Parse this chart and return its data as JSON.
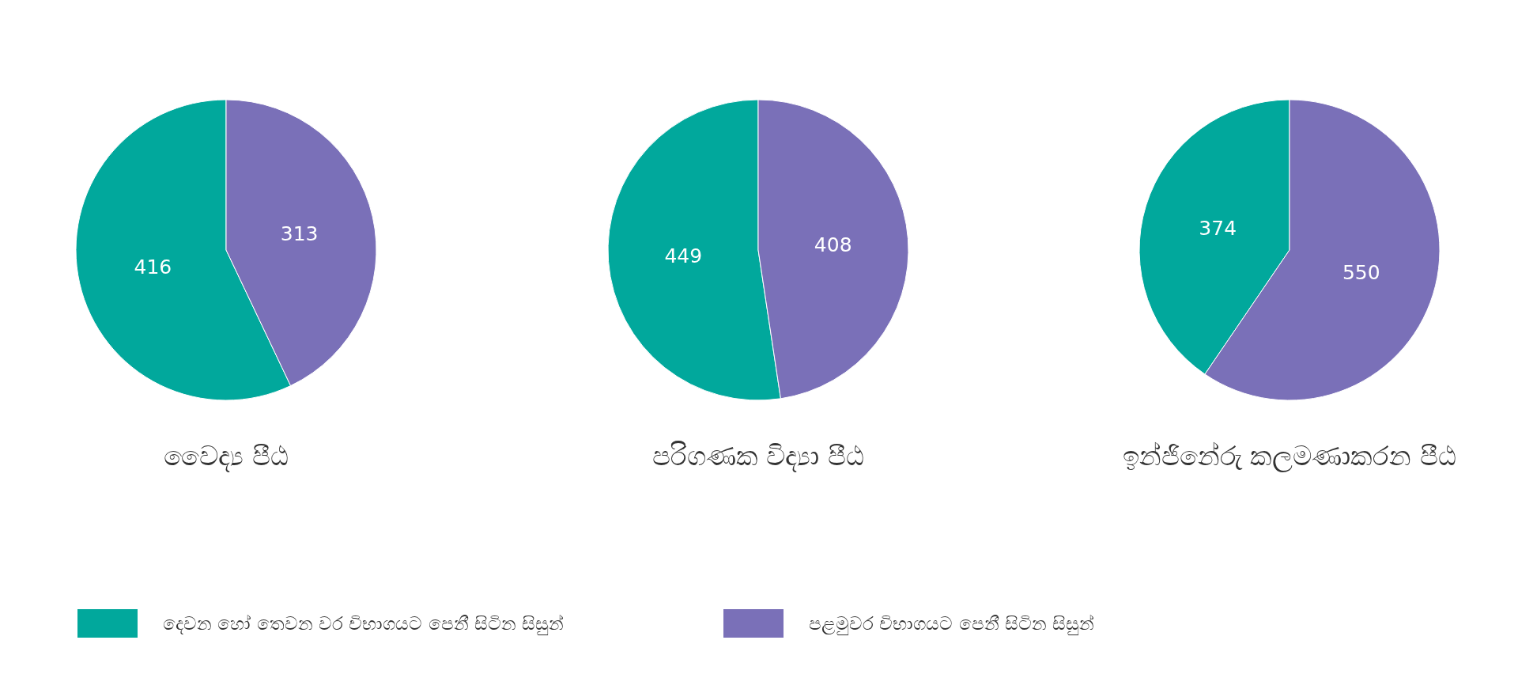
{
  "chart_data": [
    {
      "type": "pie",
      "title": "වෛද්‍ය පීඨ",
      "categories": [
        "දෙවන හෝ තෙවන වර විභාගයට පෙනී සිටින සිසුන්",
        "පළමුවර විභාගයට පෙනී සිටින සිසුන්"
      ],
      "values": [
        416,
        313
      ],
      "colors": [
        "#01a89c",
        "#7a70b8"
      ],
      "data_labels": true,
      "legend": "bottom"
    },
    {
      "type": "pie",
      "title": "පරිගණක විද්‍යා පීඨ",
      "categories": [
        null,
        null
      ],
      "values": [
        449,
        408
      ],
      "colors": [
        "#01a89c",
        "#7a70b8"
      ],
      "data_labels": true
    },
    {
      "type": "pie",
      "title": "ඉන්ජිනේරු කලමණාකරන පීඨ",
      "categories": [
        null,
        null
      ],
      "values": [
        374,
        550
      ],
      "colors": [
        "#01a89c",
        "#7a70b8"
      ],
      "data_labels": true
    }
  ]
}
